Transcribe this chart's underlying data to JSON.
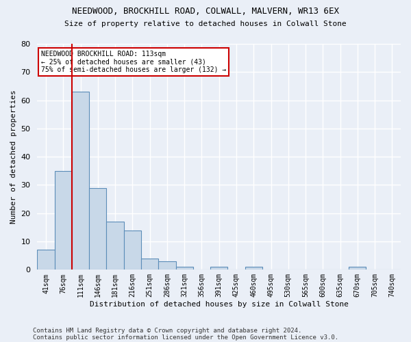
{
  "title1": "NEEDWOOD, BROCKHILL ROAD, COLWALL, MALVERN, WR13 6EX",
  "title2": "Size of property relative to detached houses in Colwall Stone",
  "xlabel": "Distribution of detached houses by size in Colwall Stone",
  "ylabel": "Number of detached properties",
  "footer1": "Contains HM Land Registry data © Crown copyright and database right 2024.",
  "footer2": "Contains public sector information licensed under the Open Government Licence v3.0.",
  "bin_labels": [
    "41sqm",
    "76sqm",
    "111sqm",
    "146sqm",
    "181sqm",
    "216sqm",
    "251sqm",
    "286sqm",
    "321sqm",
    "356sqm",
    "391sqm",
    "425sqm",
    "460sqm",
    "495sqm",
    "530sqm",
    "565sqm",
    "600sqm",
    "635sqm",
    "670sqm",
    "705sqm",
    "740sqm"
  ],
  "bar_values": [
    7,
    35,
    63,
    29,
    17,
    14,
    4,
    3,
    1,
    0,
    1,
    0,
    1,
    0,
    0,
    0,
    0,
    0,
    1,
    0,
    0
  ],
  "bar_color": "#c8d8e8",
  "bar_edge_color": "#5b8db8",
  "ylim": [
    0,
    80
  ],
  "yticks": [
    0,
    10,
    20,
    30,
    40,
    50,
    60,
    70,
    80
  ],
  "property_line_color": "#cc0000",
  "annotation_text": "NEEDWOOD BROCKHILL ROAD: 113sqm\n← 25% of detached houses are smaller (43)\n75% of semi-detached houses are larger (132) →",
  "annotation_box_color": "white",
  "annotation_box_edge": "#cc0000",
  "background_color": "#eaeff7",
  "plot_bg_color": "#eaeff7",
  "grid_color": "white"
}
